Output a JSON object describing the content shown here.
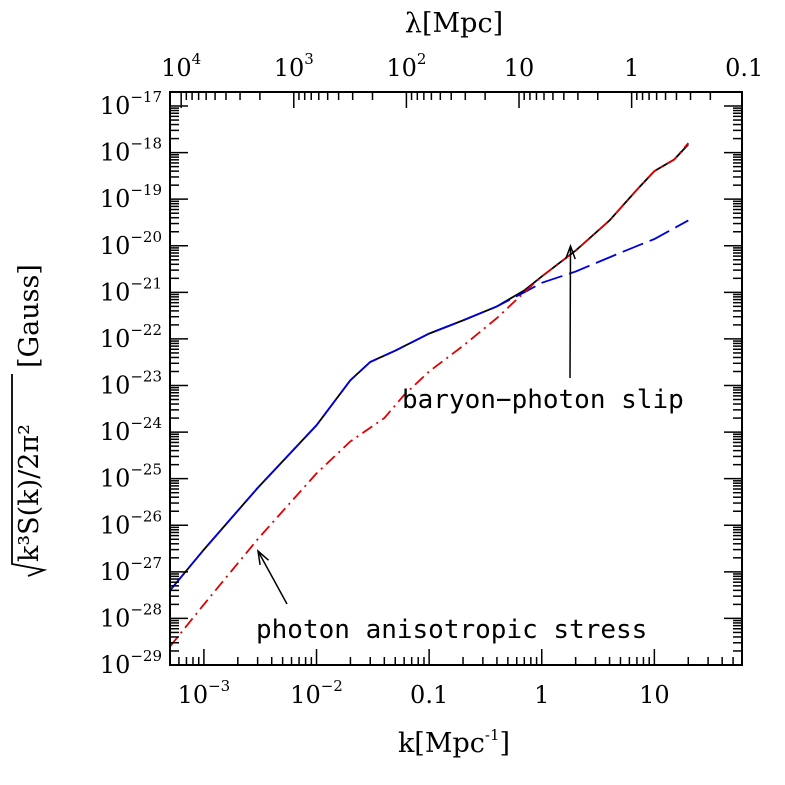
{
  "chart_data": {
    "type": "line",
    "xscale": "log",
    "yscale": "log",
    "xlabel": "k[Mpc",
    "xlabel_sup": "-1",
    "xlabel_end": "]",
    "ylabel": "√(k³S(k)/2π²) [Gauss]",
    "ylabel_parts": {
      "inner": "k³S(k)/2π²",
      "outer": "[Gauss]"
    },
    "top_xlabel": "λ[Mpc]",
    "xlim": [
      0.0005,
      60
    ],
    "ylim": [
      1e-29,
      2e-17
    ],
    "grid": false,
    "x_ticks": [
      {
        "value": 0.001,
        "base": "10",
        "exp": "-3"
      },
      {
        "value": 0.01,
        "base": "10",
        "exp": "-2"
      },
      {
        "value": 0.1,
        "base": "0.1",
        "exp": ""
      },
      {
        "value": 1,
        "base": "1",
        "exp": ""
      },
      {
        "value": 10,
        "base": "10",
        "exp": ""
      }
    ],
    "top_ticks": [
      {
        "lambda": 10000,
        "base": "10",
        "exp": "4"
      },
      {
        "lambda": 1000,
        "base": "10",
        "exp": "3"
      },
      {
        "lambda": 100,
        "base": "10",
        "exp": "2"
      },
      {
        "lambda": 10,
        "base": "10",
        "exp": ""
      },
      {
        "lambda": 1,
        "base": "1",
        "exp": ""
      },
      {
        "lambda": 0.1,
        "base": "0.1",
        "exp": ""
      }
    ],
    "y_ticks": [
      {
        "exp_value": -17,
        "base": "10",
        "exp": "-17"
      },
      {
        "exp_value": -18,
        "base": "10",
        "exp": "-18"
      },
      {
        "exp_value": -19,
        "base": "10",
        "exp": "-19"
      },
      {
        "exp_value": -20,
        "base": "10",
        "exp": "-20"
      },
      {
        "exp_value": -21,
        "base": "10",
        "exp": "-21"
      },
      {
        "exp_value": -22,
        "base": "10",
        "exp": "-22"
      },
      {
        "exp_value": -23,
        "base": "10",
        "exp": "-23"
      },
      {
        "exp_value": -24,
        "base": "10",
        "exp": "-24"
      },
      {
        "exp_value": -25,
        "base": "10",
        "exp": "-25"
      },
      {
        "exp_value": -26,
        "base": "10",
        "exp": "-26"
      },
      {
        "exp_value": -27,
        "base": "10",
        "exp": "-27"
      },
      {
        "exp_value": -28,
        "base": "10",
        "exp": "-28"
      },
      {
        "exp_value": -29,
        "base": "10",
        "exp": "-29"
      }
    ],
    "series": [
      {
        "color": "#000000",
        "style": "solid",
        "points": [
          [
            0.0005,
            4e-28
          ],
          [
            0.001,
            3e-27
          ],
          [
            0.003,
            6.3e-26
          ],
          [
            0.01,
            1.4e-24
          ],
          [
            0.02,
            1.3e-23
          ],
          [
            0.03,
            3.2e-23
          ],
          [
            0.05,
            5.6e-23
          ],
          [
            0.1,
            1.3e-22
          ],
          [
            0.2,
            2.5e-22
          ],
          [
            0.4,
            5e-22
          ],
          [
            0.7,
            1.1e-21
          ],
          [
            1,
            2.2e-21
          ],
          [
            2,
            7.9e-21
          ],
          [
            4,
            3.5e-20
          ],
          [
            7,
            1.6e-19
          ],
          [
            10,
            4e-19
          ],
          [
            15,
            7.1e-19
          ],
          [
            20,
            1.5e-18
          ]
        ]
      },
      {
        "color": "#0000dd",
        "style": "dashed",
        "points": [
          [
            0.0005,
            4e-28
          ],
          [
            0.001,
            3e-27
          ],
          [
            0.003,
            6.3e-26
          ],
          [
            0.01,
            1.4e-24
          ],
          [
            0.02,
            1.3e-23
          ],
          [
            0.03,
            3.2e-23
          ],
          [
            0.05,
            5.6e-23
          ],
          [
            0.1,
            1.3e-22
          ],
          [
            0.2,
            2.5e-22
          ],
          [
            0.4,
            5e-22
          ],
          [
            0.7,
            1e-21
          ],
          [
            1,
            1.6e-21
          ],
          [
            2,
            2.8e-21
          ],
          [
            5,
            7.1e-21
          ],
          [
            10,
            1.4e-20
          ],
          [
            20,
            3.5e-20
          ]
        ]
      },
      {
        "color": "#dd0000",
        "style": "dashdot",
        "points": [
          [
            0.0005,
            2.5e-29
          ],
          [
            0.001,
            2e-28
          ],
          [
            0.003,
            5e-27
          ],
          [
            0.01,
            1.3e-25
          ],
          [
            0.02,
            6.3e-25
          ],
          [
            0.04,
            2e-24
          ],
          [
            0.06,
            6.3e-24
          ],
          [
            0.1,
            2e-23
          ],
          [
            0.2,
            7.1e-23
          ],
          [
            0.4,
            2.8e-22
          ],
          [
            0.7,
            1e-21
          ],
          [
            1,
            2.2e-21
          ],
          [
            2,
            7.9e-21
          ],
          [
            4,
            3.5e-20
          ],
          [
            7,
            1.6e-19
          ],
          [
            10,
            4e-19
          ],
          [
            15,
            7.1e-19
          ],
          [
            20,
            1.6e-18
          ]
        ]
      }
    ],
    "annotations": [
      {
        "text": "baryon−photon slip",
        "points_to": [
          1.8,
          1e-20
        ]
      },
      {
        "text": "photon anisotropic stress",
        "points_to": [
          0.003,
          1.5e-27
        ]
      }
    ]
  }
}
